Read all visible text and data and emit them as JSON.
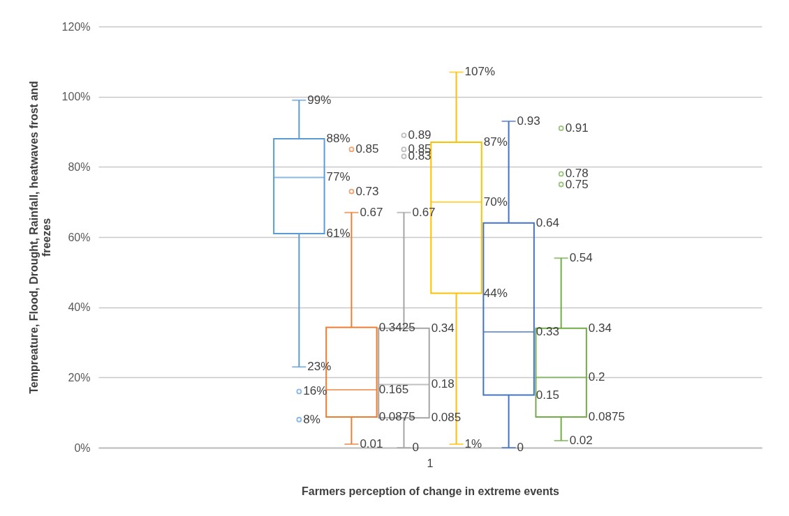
{
  "chart_data": {
    "type": "box",
    "xlabel": "Farmers perception of change in extreme events",
    "ylabel": "Tempreature, Flood, Drought, Rainfall, heatwaves  frost and freezes",
    "categories": [
      "1"
    ],
    "ylim": [
      0,
      1.2
    ],
    "yticks": [
      {
        "value": 0,
        "label": "0%"
      },
      {
        "value": 0.2,
        "label": "20%"
      },
      {
        "value": 0.4,
        "label": "40%"
      },
      {
        "value": 0.6,
        "label": "60%"
      },
      {
        "value": 0.8,
        "label": "80%"
      },
      {
        "value": 1.0,
        "label": "100%"
      },
      {
        "value": 1.2,
        "label": "120%"
      }
    ],
    "grid": "y",
    "series": [
      {
        "color": "#5b9bd5",
        "boxes": [
          {
            "low": 0.23,
            "q1": 0.61,
            "median": 0.77,
            "q3": 0.88,
            "high": 0.99,
            "outliers": [
              0.16,
              0.08
            ]
          }
        ],
        "value_labels": [
          [
            "23%",
            "61%",
            "77%",
            "88%",
            "99%",
            "16%",
            "8%"
          ]
        ]
      },
      {
        "color": "#ed7d31",
        "boxes": [
          {
            "low": 0.01,
            "q1": 0.0875,
            "median": 0.165,
            "q3": 0.3425,
            "high": 0.67,
            "outliers": [
              0.85,
              0.73
            ]
          }
        ],
        "value_labels": [
          [
            "0.01",
            "0.0875",
            "0.165",
            "0.3425",
            "0.67",
            "0.85",
            "0.73"
          ]
        ]
      },
      {
        "color": "#a5a5a5",
        "boxes": [
          {
            "low": 0,
            "q1": 0.085,
            "median": 0.18,
            "q3": 0.34,
            "high": 0.67,
            "outliers": [
              0.89,
              0.85,
              0.83
            ]
          }
        ],
        "value_labels": [
          [
            "0",
            "0.085",
            "0.18",
            "0.34",
            "0.67",
            "0.89",
            "0.85",
            "0.83"
          ]
        ]
      },
      {
        "color": "#ffc000",
        "boxes": [
          {
            "low": 0.01,
            "q1": 0.44,
            "median": 0.7,
            "q3": 0.87,
            "high": 1.07
          }
        ],
        "value_labels": [
          [
            "1%",
            "44%",
            "70%",
            "87%",
            "107%"
          ]
        ]
      },
      {
        "color": "#4472c4",
        "boxes": [
          {
            "low": 0,
            "q1": 0.15,
            "median": 0.33,
            "q3": 0.64,
            "high": 0.93
          }
        ],
        "value_labels": [
          [
            "0",
            "0.15",
            "0.33",
            "0.64",
            "0.93"
          ]
        ]
      },
      {
        "color": "#70ad47",
        "boxes": [
          {
            "low": 0.02,
            "q1": 0.0875,
            "median": 0.2,
            "q3": 0.34,
            "high": 0.54,
            "outliers": [
              0.91,
              0.78,
              0.75
            ]
          }
        ],
        "value_labels": [
          [
            "0.02",
            "0.0875",
            "0.2",
            "0.34",
            "0.54",
            "0.91",
            "0.78",
            "0.75"
          ]
        ]
      }
    ]
  }
}
